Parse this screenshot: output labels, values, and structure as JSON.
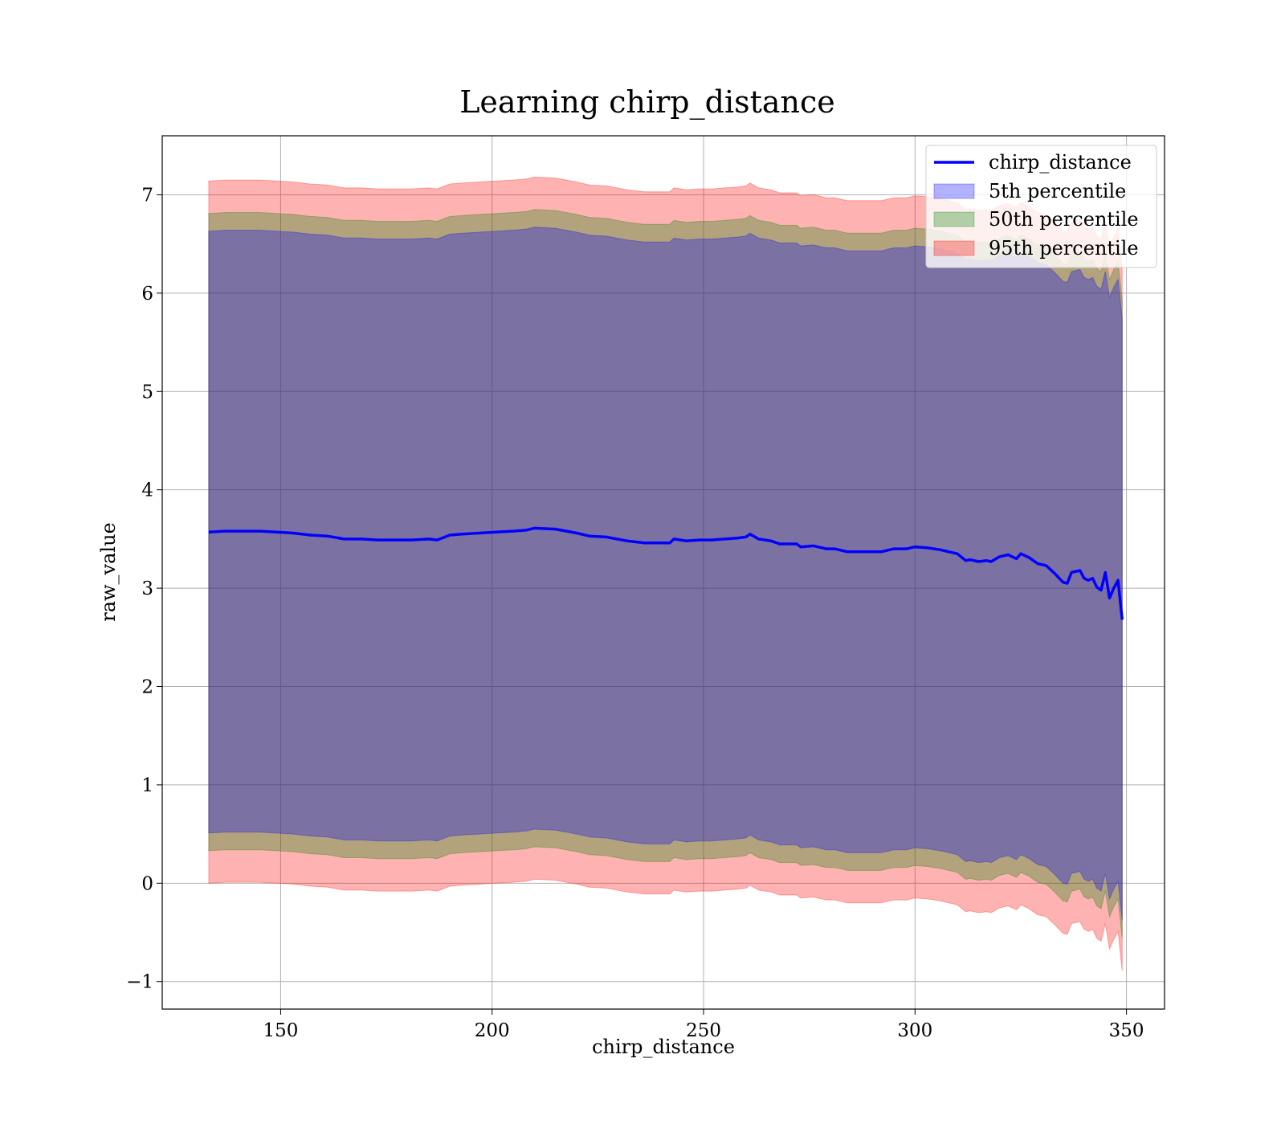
{
  "chart_data": {
    "type": "area",
    "title": "Learning chirp_distance",
    "xlabel": "chirp_distance",
    "ylabel": "raw_value",
    "xlim": [
      122,
      359
    ],
    "ylim": [
      -1.28,
      7.6
    ],
    "xticks": [
      150,
      200,
      250,
      300,
      350
    ],
    "xtick_labels": [
      "150",
      "200",
      "250",
      "300",
      "350"
    ],
    "yticks": [
      -1,
      0,
      1,
      2,
      3,
      4,
      5,
      6,
      7
    ],
    "ytick_labels": [
      "−1",
      "0",
      "1",
      "2",
      "3",
      "4",
      "5",
      "6",
      "7"
    ],
    "grid": true,
    "legend_position": "top-right",
    "x": [
      133,
      137,
      141,
      145,
      149,
      153,
      157,
      161,
      165,
      169,
      173,
      177,
      181,
      185,
      187,
      190,
      193,
      197,
      201,
      205,
      208,
      210,
      215,
      220,
      223,
      227,
      232,
      236,
      240,
      242,
      243,
      246,
      249,
      252,
      255,
      258,
      260,
      261,
      263,
      266,
      268,
      270,
      272,
      273,
      276,
      279,
      281,
      284,
      286,
      289,
      292,
      295,
      298,
      300,
      303,
      306,
      308,
      310,
      312,
      313,
      315,
      317,
      318,
      320,
      322,
      324,
      325,
      327,
      329,
      331,
      333,
      335,
      336,
      337,
      339,
      340,
      341,
      342,
      343,
      344,
      345,
      346,
      347,
      348,
      349
    ],
    "series": [
      {
        "name": "chirp_distance",
        "color": "#0000ff",
        "values": [
          3.57,
          3.58,
          3.58,
          3.58,
          3.57,
          3.56,
          3.54,
          3.53,
          3.5,
          3.5,
          3.49,
          3.49,
          3.49,
          3.5,
          3.49,
          3.54,
          3.55,
          3.56,
          3.57,
          3.58,
          3.59,
          3.61,
          3.6,
          3.56,
          3.53,
          3.52,
          3.48,
          3.46,
          3.46,
          3.46,
          3.5,
          3.48,
          3.49,
          3.49,
          3.5,
          3.51,
          3.52,
          3.55,
          3.5,
          3.48,
          3.45,
          3.45,
          3.45,
          3.42,
          3.43,
          3.4,
          3.4,
          3.37,
          3.37,
          3.37,
          3.37,
          3.4,
          3.4,
          3.42,
          3.41,
          3.39,
          3.37,
          3.35,
          3.28,
          3.29,
          3.27,
          3.28,
          3.27,
          3.32,
          3.34,
          3.3,
          3.35,
          3.31,
          3.25,
          3.23,
          3.15,
          3.06,
          3.05,
          3.16,
          3.18,
          3.1,
          3.08,
          3.1,
          3.01,
          2.98,
          3.16,
          2.9,
          3.0,
          3.08,
          2.68
        ]
      },
      {
        "name": "5th percentile",
        "color": "#0000ff",
        "offset": 3.06
      },
      {
        "name": "50th percentile",
        "color": "#008000",
        "offset": 3.24
      },
      {
        "name": "95th percentile",
        "color": "#ff0000",
        "offset": 3.57
      }
    ]
  }
}
